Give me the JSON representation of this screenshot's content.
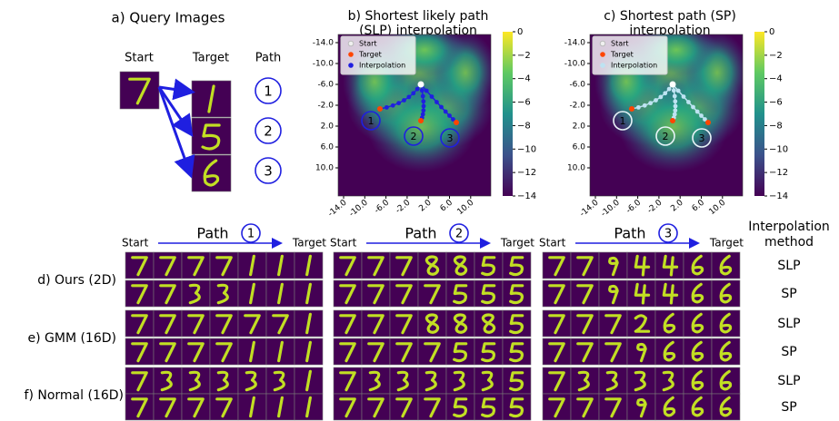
{
  "panel_a": {
    "title": "a) Query Images",
    "start_label": "Start",
    "target_label": "Target",
    "path_label": "Path",
    "path_numbers": [
      "1",
      "2",
      "3"
    ]
  },
  "panel_b": {
    "title_lines": [
      "b) Shortest likely path",
      "(SLP) interpolation"
    ],
    "legend": [
      "Start",
      "Target",
      "Interpolation"
    ],
    "yticks": [
      "-14.0",
      "-10.0",
      "-6.0",
      "-2.0",
      "2.0",
      "6.0",
      "10.0"
    ],
    "xticks": [
      "-14.0",
      "-10.0",
      "-6.0",
      "-2.0",
      "2.0",
      "6.0",
      "10.0"
    ],
    "colorbar_ticks": [
      "0",
      "−2",
      "−4",
      "−6",
      "−8",
      "−10",
      "−12",
      "−14"
    ],
    "path_numbers": [
      "1",
      "2",
      "3"
    ]
  },
  "panel_c": {
    "title_lines": [
      "c) Shortest path (SP)",
      "interpolation"
    ],
    "legend": [
      "Start",
      "Target",
      "Interpolation"
    ],
    "yticks": [
      "-14.0",
      "-10.0",
      "-6.0",
      "-2.0",
      "2.0",
      "6.0",
      "10.0"
    ],
    "xticks": [
      "-14.0",
      "-10.0",
      "-6.0",
      "-2.0",
      "2.0",
      "6.0",
      "10.0"
    ],
    "colorbar_ticks": [
      "0",
      "−2",
      "−4",
      "−6",
      "−8",
      "−10",
      "−12",
      "−14"
    ],
    "path_numbers": [
      "1",
      "2",
      "3"
    ]
  },
  "bottom": {
    "groups": [
      {
        "path_label": "Path",
        "path_number": "1",
        "start": "Start",
        "target": "Target"
      },
      {
        "path_label": "Path",
        "path_number": "2",
        "start": "Start",
        "target": "Target"
      },
      {
        "path_label": "Path",
        "path_number": "3",
        "start": "Start",
        "target": "Target"
      }
    ],
    "method_header": [
      "Interpolation",
      "method"
    ],
    "rows": [
      {
        "label": "d) Ours (2D)",
        "methods": [
          "SLP",
          "SP"
        ]
      },
      {
        "label": "e) GMM (16D)",
        "methods": [
          "SLP",
          "SP"
        ]
      },
      {
        "label": "f) Normal (16D)",
        "methods": [
          "SLP",
          "SP"
        ]
      }
    ]
  }
}
